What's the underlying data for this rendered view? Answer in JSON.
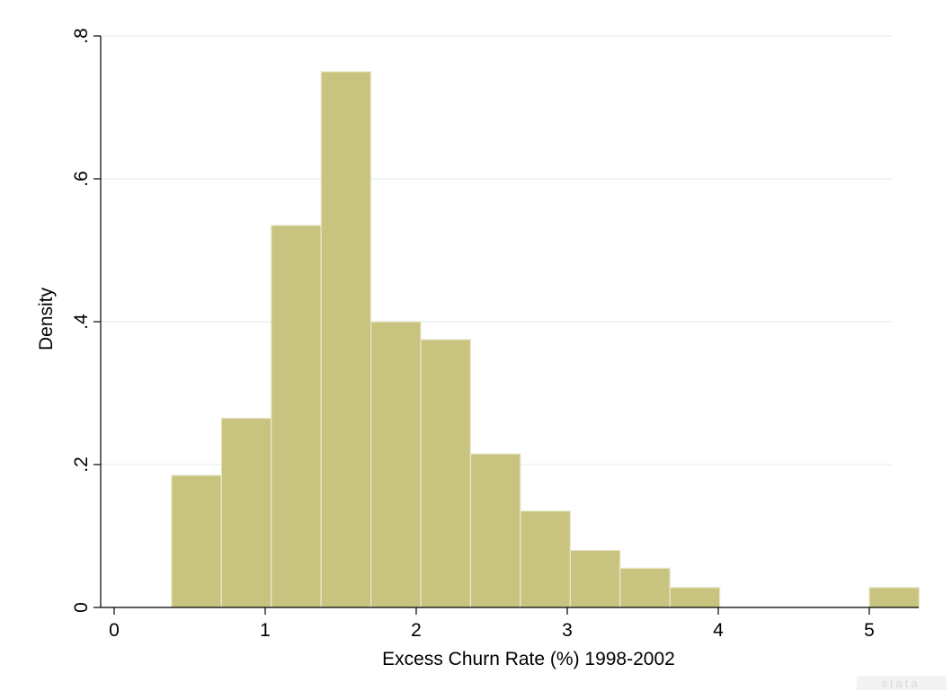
{
  "chart_data": {
    "type": "histogram",
    "title": "",
    "xlabel": "Excess Churn Rate (%) 1998-2002",
    "ylabel": "Density",
    "xlim": [
      0,
      5.3
    ],
    "ylim": [
      0,
      0.8
    ],
    "xticks": [
      0,
      1,
      2,
      3,
      4,
      5
    ],
    "xtick_labels": [
      "0",
      "1",
      "2",
      "3",
      "4",
      "5"
    ],
    "yticks": [
      0,
      0.2,
      0.4,
      0.6,
      0.8
    ],
    "ytick_labels": [
      "0",
      ".2",
      ".4",
      ".6",
      ".8"
    ],
    "grid": true,
    "bar_color": "#c8c47f",
    "bins": [
      {
        "x0": 0.38,
        "x1": 0.71,
        "density": 0.185
      },
      {
        "x0": 0.71,
        "x1": 1.04,
        "density": 0.265
      },
      {
        "x0": 1.04,
        "x1": 1.37,
        "density": 0.535
      },
      {
        "x0": 1.37,
        "x1": 1.7,
        "density": 0.75
      },
      {
        "x0": 1.7,
        "x1": 2.03,
        "density": 0.4
      },
      {
        "x0": 2.03,
        "x1": 2.36,
        "density": 0.375
      },
      {
        "x0": 2.36,
        "x1": 2.69,
        "density": 0.215
      },
      {
        "x0": 2.69,
        "x1": 3.02,
        "density": 0.135
      },
      {
        "x0": 3.02,
        "x1": 3.35,
        "density": 0.08
      },
      {
        "x0": 3.35,
        "x1": 3.68,
        "density": 0.055
      },
      {
        "x0": 3.68,
        "x1": 4.01,
        "density": 0.028
      },
      {
        "x0": 4.01,
        "x1": 4.34,
        "density": 0
      },
      {
        "x0": 4.34,
        "x1": 4.67,
        "density": 0
      },
      {
        "x0": 4.67,
        "x1": 5.0,
        "density": 0
      },
      {
        "x0": 5.0,
        "x1": 5.33,
        "density": 0.028
      }
    ]
  },
  "watermark": {
    "text": "stata"
  }
}
